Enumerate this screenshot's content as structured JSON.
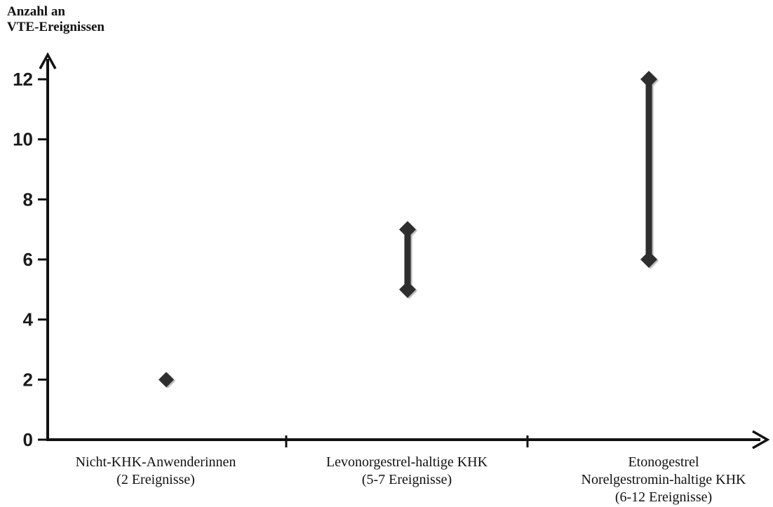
{
  "chart_data": {
    "type": "scatter",
    "subtype": "dot-range-plot",
    "title": "Anzahl an VTE-Ereignissen",
    "ylabel_lines": [
      "Anzahl an",
      "VTE-Ereignissen"
    ],
    "xlabel": "",
    "ylim": [
      0,
      12.8
    ],
    "yticks": [
      0,
      2,
      4,
      6,
      8,
      10,
      12
    ],
    "grid": false,
    "legend": "none",
    "marker": "diamond",
    "marker_color": "#2e2e2e",
    "axis_color": "#111111",
    "categories": [
      {
        "label_lines": [
          "Nicht-KHK-Anwenderinnen",
          "(2 Ereignisse)"
        ],
        "values": [
          2
        ]
      },
      {
        "label_lines": [
          "Levonorgestrel-haltige KHK",
          "(5-7 Ereignisse)"
        ],
        "values": [
          5,
          7
        ]
      },
      {
        "label_lines": [
          "Etonogestrel",
          "Norelgestromin-haltige KHK",
          "(6-12 Ereignisse)"
        ],
        "values": [
          6,
          12
        ]
      }
    ]
  }
}
